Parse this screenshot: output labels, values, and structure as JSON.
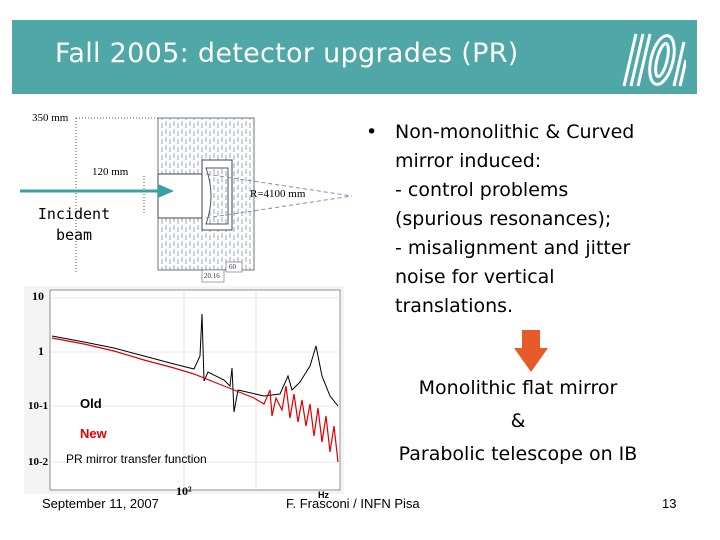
{
  "title": "Fall 2005: detector upgrades (PR)",
  "logo": "ego-logo",
  "diagram": {
    "dim_350": "350 mm",
    "dim_120": "120 mm",
    "radius": "R=4100 mm",
    "small_label_a": "20.16",
    "small_label_b": "60",
    "incident_line1": "Incident",
    "incident_line2": "beam"
  },
  "bullet": {
    "line1": "Non-monolithic & Curved",
    "line2": "mirror induced:",
    "line3": "- control problems",
    "line4": "(spurious resonances);",
    "line5": "- misalignment and jitter",
    "line6": "noise for vertical",
    "line7": "translations."
  },
  "result": {
    "line1": "Monolithic flat mirror",
    "line2": "&",
    "line3": "Parabolic telescope on IB"
  },
  "plot": {
    "y_ticks": [
      "10",
      "1",
      "10-1",
      "10-2"
    ],
    "x_tick": "10²",
    "x_unit": "Hz",
    "legend_old": "Old",
    "legend_new": "New",
    "caption": "PR mirror transfer function",
    "colors": {
      "old": "#000000",
      "new": "#e00000"
    }
  },
  "footer": {
    "date": "September 11, 2007",
    "author": "F. Frasconi / INFN Pisa",
    "page": "13"
  },
  "colors": {
    "title_bar": "#4fa7a7",
    "arrow": "#e65a2a",
    "beam": "#3aa0a8"
  }
}
